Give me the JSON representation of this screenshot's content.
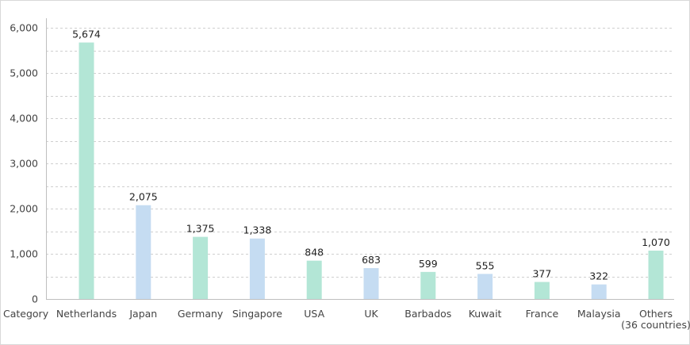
{
  "chart_data": {
    "type": "bar",
    "title": "",
    "xlabel": "Category",
    "ylabel": "",
    "ylim": [
      0,
      6000
    ],
    "y_ticks": [
      "0",
      "1,000",
      "2,000",
      "3,000",
      "4,000",
      "5,000",
      "6,000"
    ],
    "categories": [
      "Netherlands",
      "Japan",
      "Germany",
      "Singapore",
      "USA",
      "UK",
      "Barbados",
      "Kuwait",
      "France",
      "Malaysia",
      "Others\n(36 countries)"
    ],
    "values": [
      5674,
      2075,
      1375,
      1338,
      848,
      683,
      599,
      555,
      377,
      322,
      1070
    ],
    "value_labels": [
      "5,674",
      "2,075",
      "1,375",
      "1,338",
      "848",
      "683",
      "599",
      "555",
      "377",
      "322",
      "1,070"
    ],
    "bar_colors": [
      "#b3e6d6",
      "#c5dcf2",
      "#b3e6d6",
      "#c5dcf2",
      "#b3e6d6",
      "#c5dcf2",
      "#b3e6d6",
      "#c5dcf2",
      "#b3e6d6",
      "#c5dcf2",
      "#b3e6d6"
    ],
    "grid": true,
    "grid_style": "dashed",
    "legend": "none"
  }
}
